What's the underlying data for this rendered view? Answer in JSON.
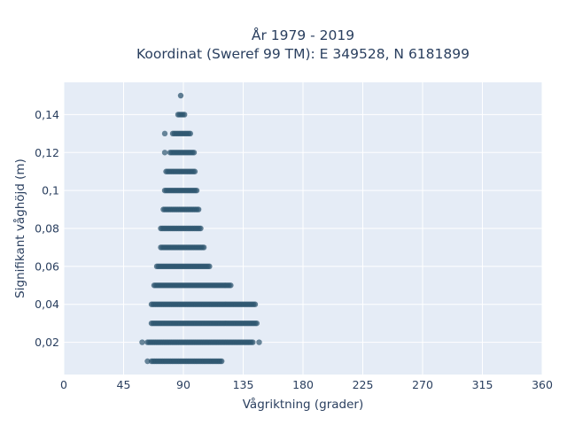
{
  "chart_data": {
    "type": "scatter",
    "title": [
      "År 1979 - 2019",
      "Koordinat (Sweref 99 TM): E 349528, N 6181899"
    ],
    "xlabel": "Vågriktning (grader)",
    "ylabel": "Signifikant våghöjd (m)",
    "xlim": [
      0,
      360
    ],
    "ylim": [
      0.003,
      0.157
    ],
    "x_ticks": [
      0,
      45,
      90,
      135,
      180,
      225,
      270,
      315,
      360
    ],
    "x_tick_labels": [
      "0",
      "45",
      "90",
      "135",
      "180",
      "225",
      "270",
      "315",
      "360"
    ],
    "y_ticks": [
      0.02,
      0.04,
      0.06,
      0.08,
      0.1,
      0.12,
      0.14
    ],
    "y_tick_labels": [
      "0,02",
      "0,04",
      "0,06",
      "0,08",
      "0,1",
      "0,12",
      "0,14"
    ],
    "grid": true,
    "marker_color": "#2f5770",
    "background_color": "#e5ecf6",
    "series": [
      {
        "rows": [
          {
            "y": 0.01,
            "x_min": 66,
            "x_max": 119,
            "outliers": [
              63
            ]
          },
          {
            "y": 0.02,
            "x_min": 63,
            "x_max": 143,
            "outliers": [
              59,
              147
            ]
          },
          {
            "y": 0.03,
            "x_min": 66,
            "x_max": 146,
            "outliers": []
          },
          {
            "y": 0.04,
            "x_min": 66,
            "x_max": 145,
            "outliers": []
          },
          {
            "y": 0.05,
            "x_min": 68,
            "x_max": 126,
            "outliers": []
          },
          {
            "y": 0.06,
            "x_min": 70,
            "x_max": 110,
            "outliers": []
          },
          {
            "y": 0.07,
            "x_min": 73,
            "x_max": 106,
            "outliers": []
          },
          {
            "y": 0.08,
            "x_min": 73,
            "x_max": 103,
            "outliers": []
          },
          {
            "y": 0.09,
            "x_min": 75,
            "x_max": 102,
            "outliers": []
          },
          {
            "y": 0.1,
            "x_min": 76,
            "x_max": 101,
            "outliers": []
          },
          {
            "y": 0.11,
            "x_min": 77,
            "x_max": 99,
            "outliers": []
          },
          {
            "y": 0.12,
            "x_min": 80,
            "x_max": 98,
            "outliers": [
              76
            ]
          },
          {
            "y": 0.13,
            "x_min": 82,
            "x_max": 96,
            "outliers": [
              76
            ]
          },
          {
            "y": 0.14,
            "x_min": 86,
            "x_max": 91,
            "outliers": []
          },
          {
            "y": 0.15,
            "x_min": 88,
            "x_max": 89,
            "outliers": []
          }
        ]
      }
    ]
  }
}
